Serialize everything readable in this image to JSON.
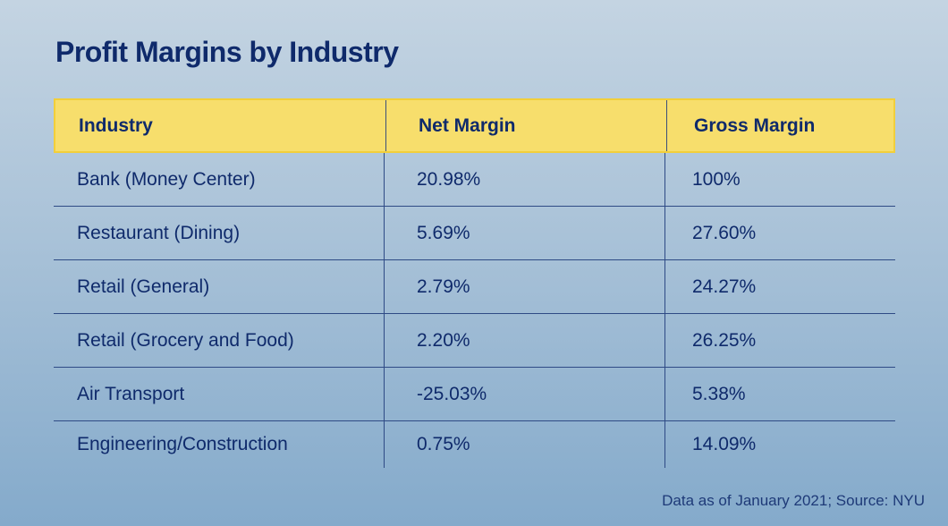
{
  "title": "Profit Margins by Industry",
  "footnote": "Data as of January 2021; Source: NYU",
  "colors": {
    "header_fill": "#f7de6c",
    "header_border": "#f2cf3a",
    "text": "#0f2a6b",
    "rule": "#2e4a85"
  },
  "chart_data": {
    "type": "table",
    "title": "Profit Margins by Industry",
    "columns": [
      "Industry",
      "Net Margin",
      "Gross Margin"
    ],
    "rows": [
      [
        "Bank (Money Center)",
        "20.98%",
        "100%"
      ],
      [
        "Restaurant (Dining)",
        "5.69%",
        "27.60%"
      ],
      [
        "Retail (General)",
        "2.79%",
        "24.27%"
      ],
      [
        "Retail (Grocery and Food)",
        "2.20%",
        "26.25%"
      ],
      [
        "Air Transport",
        "-25.03%",
        "5.38%"
      ],
      [
        "Engineering/Construction",
        "0.75%",
        "14.09%"
      ]
    ],
    "annotation": "Data as of January 2021; Source: NYU"
  }
}
